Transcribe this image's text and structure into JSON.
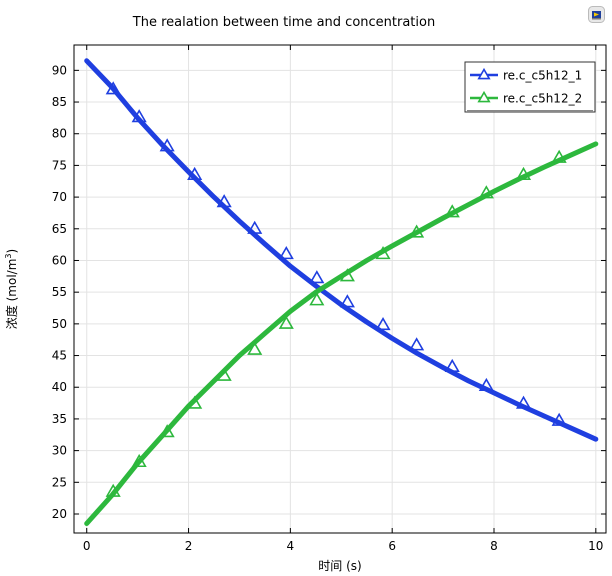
{
  "chart_data": {
    "type": "line",
    "title": "The realation between time and concentration",
    "xlabel": "时间 (s)",
    "ylabel_prefix": "浓度 (mol/m",
    "ylabel_sup": "3",
    "ylabel_suffix": ")",
    "xlim": [
      -0.25,
      10.2
    ],
    "ylim": [
      17,
      94
    ],
    "xticks": [
      0,
      2,
      4,
      6,
      8,
      10
    ],
    "yticks": [
      20,
      25,
      30,
      35,
      40,
      45,
      50,
      55,
      60,
      65,
      70,
      75,
      80,
      85,
      90
    ],
    "grid": true,
    "legend_position": "top-right",
    "series": [
      {
        "name": "re.c_c5h12_1",
        "color": "#1f3fe0",
        "marker": "triangle-open",
        "x": [
          0,
          0.5,
          1,
          1.5,
          2,
          2.5,
          3,
          3.5,
          4,
          4.5,
          5,
          5.5,
          6,
          6.5,
          7,
          7.5,
          8,
          8.5,
          9,
          9.5,
          10
        ],
        "y": [
          91.5,
          87.3,
          82.5,
          78.1,
          74.0,
          70.0,
          66.2,
          62.6,
          59.1,
          56.0,
          53.0,
          50.3,
          47.7,
          45.3,
          43.1,
          41.0,
          39.1,
          37.2,
          35.4,
          33.6,
          31.8
        ],
        "marker_x": [
          0.52,
          1.03,
          1.58,
          2.12,
          2.7,
          3.3,
          3.92,
          4.52,
          5.12,
          5.82,
          6.48,
          7.18,
          7.85,
          8.58,
          9.28
        ],
        "marker_y": [
          87.0,
          82.6,
          78.0,
          73.5,
          69.2,
          65.0,
          61.0,
          57.2,
          53.4,
          49.8,
          46.6,
          43.2,
          40.2,
          37.4,
          34.7
        ]
      },
      {
        "name": "re.c_c5h12_2",
        "color": "#2db83d",
        "marker": "triangle-open",
        "x": [
          0,
          0.5,
          1,
          1.5,
          2,
          2.5,
          3,
          3.5,
          4,
          4.5,
          5,
          5.5,
          6,
          6.5,
          7,
          7.5,
          8,
          8.5,
          9,
          9.5,
          10
        ],
        "y": [
          18.5,
          23.0,
          28.0,
          32.5,
          37.0,
          41.0,
          45.0,
          48.5,
          52.0,
          55.0,
          57.5,
          60.0,
          62.3,
          64.5,
          66.7,
          68.8,
          70.9,
          72.9,
          74.8,
          76.6,
          78.4
        ],
        "marker_x": [
          0.52,
          1.03,
          1.58,
          2.12,
          2.7,
          3.3,
          3.92,
          4.52,
          5.12,
          5.82,
          6.48,
          7.18,
          7.85,
          8.58,
          9.28
        ],
        "marker_y": [
          23.5,
          28.2,
          32.9,
          37.4,
          41.8,
          45.9,
          50.0,
          53.7,
          57.5,
          61.0,
          64.4,
          67.6,
          70.6,
          73.5,
          76.2
        ]
      }
    ]
  },
  "app": {
    "icon": "comsol-window-icon"
  }
}
